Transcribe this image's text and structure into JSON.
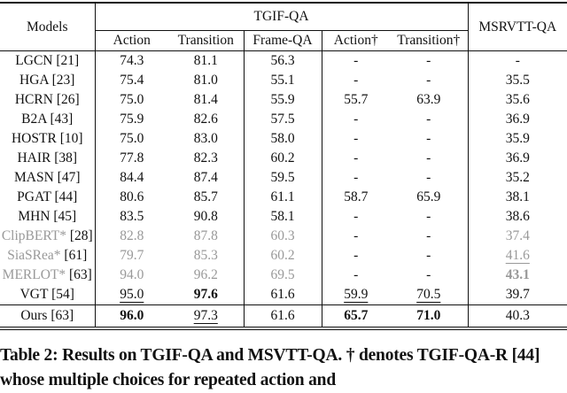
{
  "header": {
    "models": "Models",
    "tgif": "TGIF-QA",
    "msrvtt": "MSRVTT-QA",
    "subcols": [
      "Action",
      "Transition",
      "Frame-QA",
      "Action†",
      "Transition†"
    ]
  },
  "rows": [
    {
      "name": "LGCN",
      "cite": "[21]",
      "gray": false,
      "cells": [
        {
          "v": "74.3"
        },
        {
          "v": "81.1"
        },
        {
          "v": "56.3"
        },
        {
          "v": "-"
        },
        {
          "v": "-"
        },
        {
          "v": "-"
        }
      ]
    },
    {
      "name": "HGA",
      "cite": "[23]",
      "gray": false,
      "cells": [
        {
          "v": "75.4"
        },
        {
          "v": "81.0"
        },
        {
          "v": "55.1"
        },
        {
          "v": "-"
        },
        {
          "v": "-"
        },
        {
          "v": "35.5"
        }
      ]
    },
    {
      "name": "HCRN",
      "cite": "[26]",
      "gray": false,
      "cells": [
        {
          "v": "75.0"
        },
        {
          "v": "81.4"
        },
        {
          "v": "55.9"
        },
        {
          "v": "55.7"
        },
        {
          "v": "63.9"
        },
        {
          "v": "35.6"
        }
      ]
    },
    {
      "name": "B2A",
      "cite": "[43]",
      "gray": false,
      "cells": [
        {
          "v": "75.9"
        },
        {
          "v": "82.6"
        },
        {
          "v": "57.5"
        },
        {
          "v": "-"
        },
        {
          "v": "-"
        },
        {
          "v": "36.9"
        }
      ]
    },
    {
      "name": "HOSTR",
      "cite": "[10]",
      "gray": false,
      "cells": [
        {
          "v": "75.0"
        },
        {
          "v": "83.0"
        },
        {
          "v": "58.0"
        },
        {
          "v": "-"
        },
        {
          "v": "-"
        },
        {
          "v": "35.9"
        }
      ]
    },
    {
      "name": "HAIR",
      "cite": "[38]",
      "gray": false,
      "cells": [
        {
          "v": "77.8"
        },
        {
          "v": "82.3"
        },
        {
          "v": "60.2"
        },
        {
          "v": "-"
        },
        {
          "v": "-"
        },
        {
          "v": "36.9"
        }
      ]
    },
    {
      "name": "MASN",
      "cite": "[47]",
      "gray": false,
      "cells": [
        {
          "v": "84.4"
        },
        {
          "v": "87.4"
        },
        {
          "v": "59.5"
        },
        {
          "v": "-"
        },
        {
          "v": "-"
        },
        {
          "v": "35.2"
        }
      ]
    },
    {
      "name": "PGAT",
      "cite": "[44]",
      "gray": false,
      "cells": [
        {
          "v": "80.6"
        },
        {
          "v": "85.7"
        },
        {
          "v": "61.1"
        },
        {
          "v": "58.7"
        },
        {
          "v": "65.9"
        },
        {
          "v": "38.1"
        }
      ]
    },
    {
      "name": "MHN",
      "cite": "[45]",
      "gray": false,
      "cells": [
        {
          "v": "83.5"
        },
        {
          "v": "90.8"
        },
        {
          "v": "58.1"
        },
        {
          "v": "-"
        },
        {
          "v": "-"
        },
        {
          "v": "38.6"
        }
      ]
    },
    {
      "name": "ClipBERT*",
      "cite": "[28]",
      "gray": true,
      "cells": [
        {
          "v": "82.8"
        },
        {
          "v": "87.8"
        },
        {
          "v": "60.3"
        },
        {
          "v": "-"
        },
        {
          "v": "-"
        },
        {
          "v": "37.4"
        }
      ]
    },
    {
      "name": "SiaSRea*",
      "cite": "[61]",
      "gray": true,
      "cells": [
        {
          "v": "79.7"
        },
        {
          "v": "85.3"
        },
        {
          "v": "60.2"
        },
        {
          "v": "-"
        },
        {
          "v": "-"
        },
        {
          "v": "41.6",
          "u": true
        }
      ]
    },
    {
      "name": "MERLOT*",
      "cite": "[63]",
      "gray": true,
      "cells": [
        {
          "v": "94.0"
        },
        {
          "v": "96.2"
        },
        {
          "v": "69.5"
        },
        {
          "v": "-"
        },
        {
          "v": "-"
        },
        {
          "v": "43.1",
          "b": true
        }
      ]
    },
    {
      "name": "VGT",
      "cite": "[54]",
      "gray": false,
      "cells": [
        {
          "v": "95.0",
          "u": true
        },
        {
          "v": "97.6",
          "b": true
        },
        {
          "v": "61.6"
        },
        {
          "v": "59.9",
          "u": true
        },
        {
          "v": "70.5",
          "u": true
        },
        {
          "v": "39.7"
        }
      ]
    },
    {
      "name": "Ours",
      "cite": "[63]",
      "gray": false,
      "ours": true,
      "cells": [
        {
          "v": "96.0",
          "b": true
        },
        {
          "v": "97.3",
          "u": true
        },
        {
          "v": "61.6"
        },
        {
          "v": "65.7",
          "b": true
        },
        {
          "v": "71.0",
          "b": true
        },
        {
          "v": "40.3"
        }
      ]
    }
  ],
  "caption": "Table 2: Results on TGIF-QA and MSVTT-QA. † denotes TGIF-QA-R [44] whose multiple choices for repeated action and"
}
